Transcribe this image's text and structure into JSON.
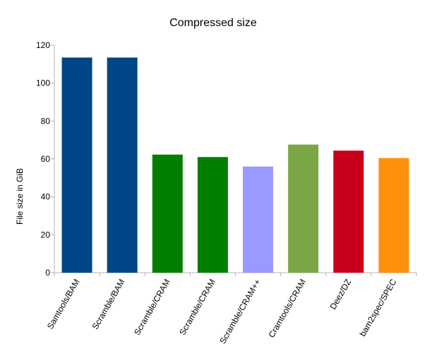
{
  "chart_data": {
    "type": "bar",
    "title": "Compressed size",
    "xlabel": "",
    "ylabel": "File size in GiB",
    "ylim": [
      0,
      120
    ],
    "yticks": [
      0,
      20,
      40,
      60,
      80,
      100,
      120
    ],
    "grid": false,
    "legend": "none",
    "categories": [
      "Samtools/BAM",
      "Scramble/BAM",
      "Scramble/CRAM",
      "Scramble/CRAM",
      "Scramble/CRAM++",
      "Cramtools/CRAM",
      "Deez/DZ",
      "bam2spec/SPEC"
    ],
    "values": [
      113.5,
      113.5,
      62.3,
      61.0,
      56.0,
      67.6,
      64.4,
      60.5
    ],
    "colors": [
      "#004586",
      "#004586",
      "#007f00",
      "#007f00",
      "#9999ff",
      "#7ba645",
      "#c9001b",
      "#ff900e"
    ]
  }
}
